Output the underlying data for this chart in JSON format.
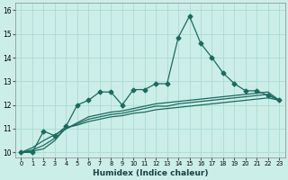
{
  "xlabel": "Humidex (Indice chaleur)",
  "background_color": "#cceee8",
  "line_color": "#1a6b5e",
  "x": [
    0,
    1,
    2,
    3,
    4,
    5,
    6,
    7,
    8,
    9,
    10,
    11,
    12,
    13,
    14,
    15,
    16,
    17,
    18,
    19,
    20,
    21,
    22,
    23
  ],
  "y_main": [
    10.0,
    10.0,
    10.9,
    10.7,
    11.1,
    12.0,
    12.2,
    12.55,
    12.55,
    12.0,
    12.65,
    12.65,
    12.9,
    12.9,
    14.85,
    15.75,
    14.6,
    14.0,
    13.35,
    12.9,
    12.6,
    12.6,
    12.4,
    12.2
  ],
  "y_line1": [
    10.0,
    10.05,
    10.15,
    10.5,
    11.05,
    11.15,
    11.3,
    11.4,
    11.5,
    11.55,
    11.65,
    11.7,
    11.8,
    11.85,
    11.9,
    11.95,
    12.0,
    12.05,
    12.1,
    12.15,
    12.2,
    12.25,
    12.3,
    12.2
  ],
  "y_line2": [
    10.0,
    10.1,
    10.3,
    10.6,
    11.0,
    11.2,
    11.4,
    11.5,
    11.6,
    11.65,
    11.75,
    11.85,
    11.95,
    11.95,
    12.05,
    12.1,
    12.15,
    12.2,
    12.25,
    12.3,
    12.35,
    12.4,
    12.45,
    12.2
  ],
  "y_line3": [
    10.0,
    10.2,
    10.5,
    10.75,
    11.0,
    11.25,
    11.5,
    11.6,
    11.7,
    11.75,
    11.85,
    11.95,
    12.05,
    12.1,
    12.15,
    12.2,
    12.25,
    12.3,
    12.35,
    12.4,
    12.45,
    12.5,
    12.55,
    12.2
  ],
  "ylim": [
    9.8,
    16.3
  ],
  "yticks": [
    10,
    11,
    12,
    13,
    14,
    15,
    16
  ],
  "xticks": [
    0,
    1,
    2,
    3,
    4,
    5,
    6,
    7,
    8,
    9,
    10,
    11,
    12,
    13,
    14,
    15,
    16,
    17,
    18,
    19,
    20,
    21,
    22,
    23
  ],
  "grid_color": "#aadcd4",
  "markersize": 2.5,
  "linewidth": 0.9
}
